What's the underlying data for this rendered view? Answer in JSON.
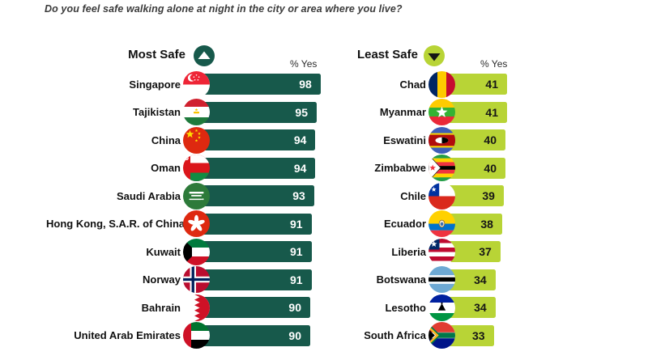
{
  "title": "Do you feel safe walking alone at night in the city or area where you live?",
  "colors": {
    "most_safe_green": "#17594B",
    "least_safe_lime": "#B8D436"
  },
  "chart_data": [
    {
      "type": "bar",
      "title": "Most Safe",
      "icon": "up-triangle-icon",
      "direction": "up",
      "value_label": "% Yes",
      "value_unit": "% answering yes",
      "xlim": [
        0,
        100
      ],
      "bar_color": "#17594B",
      "value_color": "#FFFFFF",
      "categories": [
        "Singapore",
        "Tajikistan",
        "China",
        "Oman",
        "Saudi Arabia",
        "Hong Kong, S.A.R. of China",
        "Kuwait",
        "Norway",
        "Bahrain",
        "United Arab Emirates"
      ],
      "values": [
        98,
        95,
        94,
        94,
        93,
        91,
        91,
        91,
        90,
        90
      ],
      "flags": [
        "singapore",
        "tajikistan",
        "china",
        "oman",
        "saudi-arabia",
        "hong-kong",
        "kuwait",
        "norway",
        "bahrain",
        "united-arab-emirates"
      ]
    },
    {
      "type": "bar",
      "title": "Least Safe",
      "icon": "down-triangle-icon",
      "direction": "down",
      "value_label": "% Yes",
      "value_unit": "% answering yes",
      "xlim": [
        0,
        100
      ],
      "bar_color": "#B8D436",
      "value_color": "#161616",
      "categories": [
        "Chad",
        "Myanmar",
        "Eswatini",
        "Zimbabwe",
        "Chile",
        "Ecuador",
        "Liberia",
        "Botswana",
        "Lesotho",
        "South Africa"
      ],
      "values": [
        41,
        41,
        40,
        40,
        39,
        38,
        37,
        34,
        34,
        33
      ],
      "flags": [
        "chad",
        "myanmar",
        "eswatini",
        "zimbabwe",
        "chile",
        "ecuador",
        "liberia",
        "botswana",
        "lesotho",
        "south-africa"
      ]
    }
  ]
}
